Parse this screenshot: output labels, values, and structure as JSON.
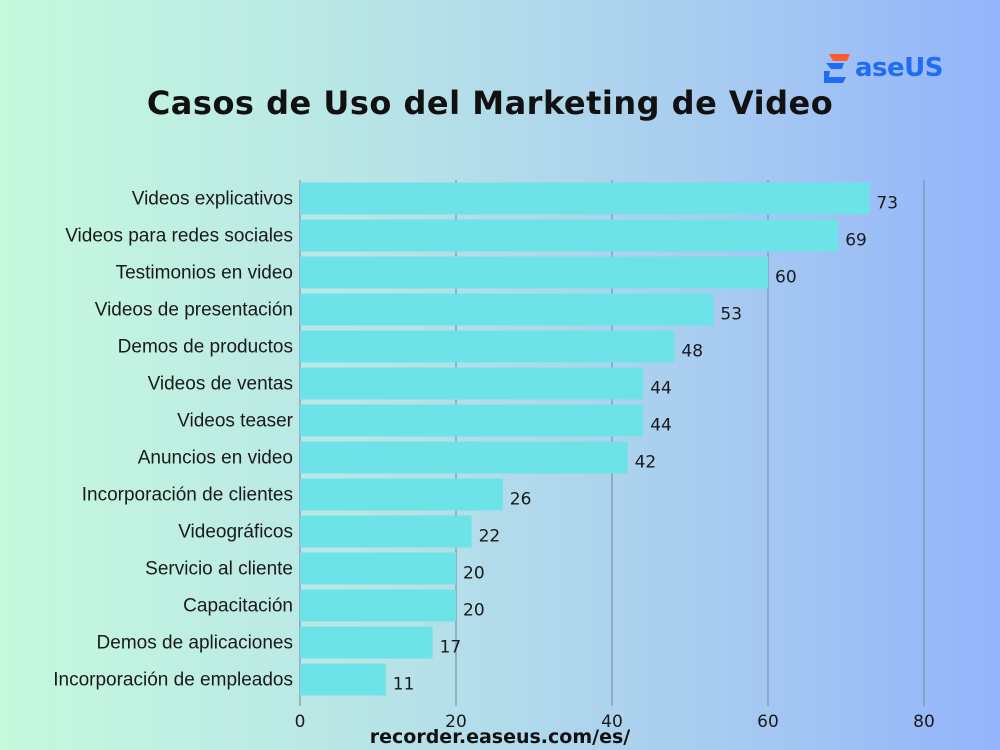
{
  "brand": {
    "logo_text": "aseUS",
    "accent_color": "#1f6cf5",
    "accent_color_2": "#ff5a2c"
  },
  "footer": {
    "url": "recorder.easeus.com/es/"
  },
  "chart_data": {
    "type": "bar",
    "orientation": "horizontal",
    "title": "Casos de Uso del Marketing de Video",
    "categories": [
      "Videos explicativos",
      "Videos para redes sociales",
      "Testimonios en video",
      "Videos de presentación",
      "Demos de productos",
      "Videos de ventas",
      "Videos teaser",
      "Anuncios en video",
      "Incorporación de clientes",
      "Videográficos",
      "Servicio al cliente",
      "Capacitación",
      "Demos de aplicaciones",
      "Incorporación de empleados"
    ],
    "values": [
      73,
      69,
      60,
      53,
      48,
      44,
      44,
      42,
      26,
      22,
      20,
      20,
      17,
      11
    ],
    "xlim": [
      0,
      80
    ],
    "xticks": [
      0,
      20,
      40,
      60,
      80
    ],
    "grid": true,
    "bar_color": "#6de3e8",
    "grid_color": "#7d93a8"
  }
}
